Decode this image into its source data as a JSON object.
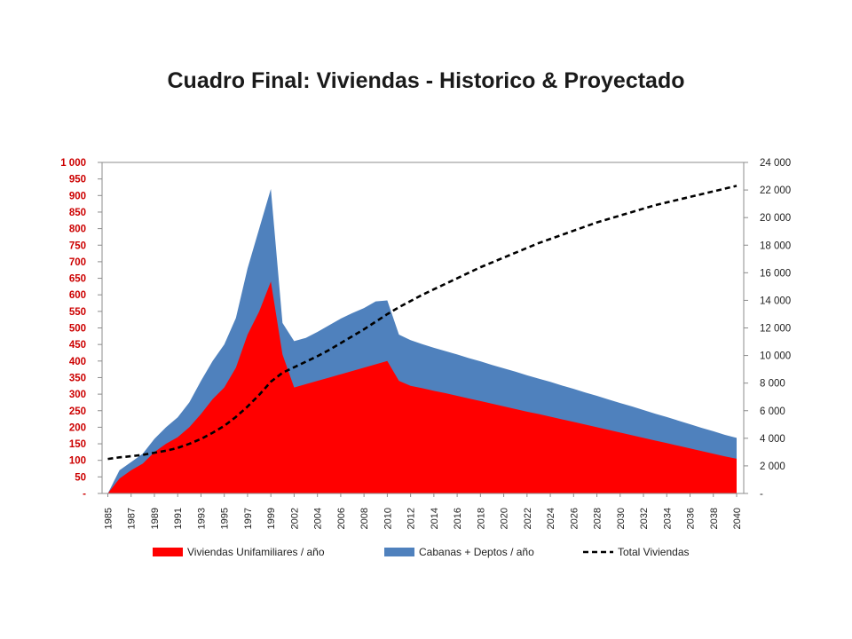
{
  "chart_data": {
    "type": "area",
    "title": "Cuadro Final: Viviendas - Historico & Proyectado",
    "x_tick_labels": [
      "1985",
      "1987",
      "1989",
      "1991",
      "1993",
      "1995",
      "1997",
      "1999",
      "2002",
      "2004",
      "2006",
      "2008",
      "2010",
      "2012",
      "2014",
      "2016",
      "2018",
      "2020",
      "2022",
      "2024",
      "2026",
      "2028",
      "2030",
      "2032",
      "2034",
      "2036",
      "2038",
      "2040"
    ],
    "x": [
      1985,
      1986,
      1987,
      1988,
      1989,
      1990,
      1991,
      1992,
      1993,
      1994,
      1995,
      1996,
      1997,
      1998,
      1999,
      2001,
      2002,
      2003,
      2004,
      2005,
      2006,
      2007,
      2008,
      2009,
      2010,
      2011,
      2012,
      2013,
      2014,
      2015,
      2016,
      2017,
      2018,
      2019,
      2020,
      2021,
      2022,
      2023,
      2024,
      2025,
      2026,
      2027,
      2028,
      2029,
      2030,
      2031,
      2032,
      2033,
      2034,
      2035,
      2036,
      2037,
      2038,
      2039,
      2040
    ],
    "y_left": {
      "ticks": [
        "-",
        "50",
        "100",
        "150",
        "200",
        "250",
        "300",
        "350",
        "400",
        "450",
        "500",
        "550",
        "600",
        "650",
        "700",
        "750",
        "800",
        "850",
        "900",
        "950",
        "1 000"
      ],
      "range": [
        0,
        1000
      ],
      "color": "#cc0000"
    },
    "y_right": {
      "ticks": [
        "-",
        "2 000",
        "4 000",
        "6 000",
        "8 000",
        "10 000",
        "12 000",
        "14 000",
        "16 000",
        "18 000",
        "20 000",
        "22 000",
        "24 000"
      ],
      "range": [
        0,
        24000
      ]
    },
    "series": [
      {
        "name": "Viviendas Unifamiliares / año",
        "kind": "stacked-area",
        "color": "#ff0000",
        "axis": "left",
        "values": [
          0,
          45,
          70,
          90,
          125,
          150,
          170,
          200,
          240,
          285,
          320,
          380,
          480,
          550,
          640,
          420,
          320,
          330,
          340,
          350,
          360,
          370,
          380,
          390,
          400,
          340,
          325,
          318,
          310,
          303,
          295,
          287,
          279,
          271,
          263,
          255,
          247,
          240,
          232,
          224,
          216,
          208,
          200,
          192,
          184,
          176,
          168,
          160,
          152,
          144,
          136,
          128,
          120,
          112,
          105
        ]
      },
      {
        "name": "Cabanas + Deptos / año",
        "kind": "stacked-area",
        "color": "#4f81bd",
        "axis": "left",
        "values": [
          0,
          25,
          25,
          30,
          40,
          50,
          60,
          75,
          100,
          115,
          130,
          150,
          200,
          250,
          280,
          95,
          140,
          140,
          148,
          158,
          168,
          175,
          180,
          190,
          183,
          140,
          138,
          133,
          130,
          127,
          125,
          122,
          120,
          117,
          115,
          113,
          110,
          107,
          105,
          102,
          100,
          97,
          95,
          92,
          89,
          87,
          84,
          81,
          79,
          76,
          73,
          70,
          68,
          65,
          63
        ]
      },
      {
        "name": "Total Viviendas",
        "kind": "line",
        "dash": true,
        "color": "#000000",
        "axis": "right",
        "values": [
          2500,
          2620,
          2700,
          2800,
          2950,
          3100,
          3300,
          3600,
          3950,
          4400,
          4900,
          5550,
          6300,
          7150,
          8100,
          8750,
          9150,
          9550,
          9950,
          10400,
          10900,
          11400,
          11900,
          12450,
          13000,
          13500,
          13950,
          14400,
          14800,
          15200,
          15600,
          16000,
          16400,
          16750,
          17100,
          17450,
          17800,
          18150,
          18450,
          18750,
          19050,
          19350,
          19650,
          19900,
          20150,
          20400,
          20650,
          20900,
          21100,
          21300,
          21500,
          21700,
          21900,
          22100,
          22300
        ]
      }
    ],
    "legend": {
      "position": "bottom",
      "items": [
        "Viviendas Unifamiliares / año",
        "Cabanas + Deptos / año",
        "Total Viviendas"
      ]
    },
    "grid": false
  }
}
